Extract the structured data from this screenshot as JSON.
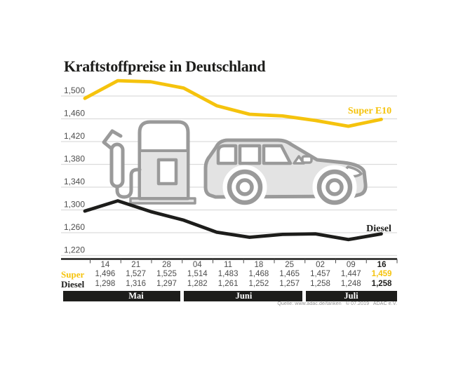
{
  "title": "Kraftstoffpreise in Deutschland",
  "source_note": "Quelle: www.adac.de/tanken   © 07.2019   ADAC e.V.",
  "colors": {
    "accent_yellow": "#F5C30D",
    "ink_black": "#1D1D1B",
    "grid_gray": "#DCDCDC",
    "text_gray": "#4D4D4D",
    "icon_stroke_gray": "#9A9A9A",
    "icon_fill_gray": "#E3E3E3"
  },
  "chart_data": {
    "type": "line",
    "title": "Kraftstoffpreise in Deutschland",
    "x_dates": [
      "14",
      "21",
      "28",
      "04",
      "11",
      "18",
      "25",
      "02",
      "09",
      "16"
    ],
    "x_months": [
      {
        "label": "Mai",
        "n_dates": 3
      },
      {
        "label": "Juni",
        "n_dates": 4
      },
      {
        "label": "Juli",
        "n_dates": 3
      }
    ],
    "yticks": [
      1.5,
      1.46,
      1.42,
      1.38,
      1.34,
      1.3,
      1.26,
      1.22
    ],
    "ylim": [
      1.22,
      1.54
    ],
    "grid": true,
    "legend_position": "inline-right",
    "series": [
      {
        "name": "Super E10",
        "color": "#F5C30D",
        "values": [
          1.496,
          1.527,
          1.525,
          1.514,
          1.483,
          1.468,
          1.465,
          1.457,
          1.447,
          1.459
        ]
      },
      {
        "name": "Diesel",
        "color": "#1D1D1B",
        "values": [
          1.298,
          1.316,
          1.297,
          1.282,
          1.261,
          1.252,
          1.257,
          1.258,
          1.248,
          1.258
        ]
      }
    ]
  },
  "table": {
    "dates": [
      "14",
      "21",
      "28",
      "04",
      "11",
      "18",
      "25",
      "02",
      "09",
      "16"
    ],
    "rows": [
      {
        "label": "Super",
        "values": [
          "1,496",
          "1,527",
          "1,525",
          "1,514",
          "1,483",
          "1,468",
          "1,465",
          "1,457",
          "1,447",
          "1,459"
        ]
      },
      {
        "label": "Diesel",
        "values": [
          "1,298",
          "1,316",
          "1,297",
          "1,282",
          "1,261",
          "1,252",
          "1,257",
          "1,258",
          "1,248",
          "1,258"
        ]
      }
    ],
    "months": [
      "Mai",
      "Juni",
      "Juli"
    ]
  }
}
